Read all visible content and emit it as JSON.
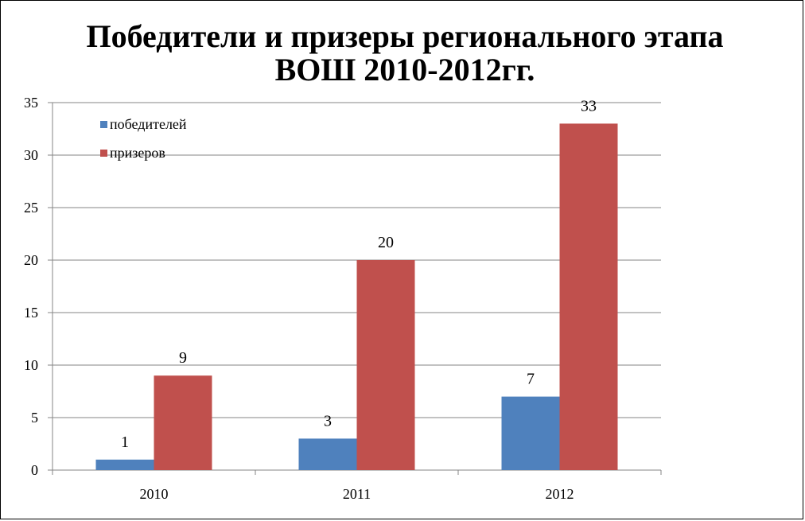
{
  "chart_data": {
    "type": "bar",
    "title_lines": [
      "Победители и призеры регионального этапа",
      "ВОШ 2010-2012гг."
    ],
    "categories": [
      "2010",
      "2011",
      "2012"
    ],
    "series": [
      {
        "name": "победителей",
        "values": [
          1,
          3,
          7
        ],
        "color": "#4F81BD"
      },
      {
        "name": "призеров",
        "values": [
          9,
          20,
          33
        ],
        "color": "#C0504D"
      }
    ],
    "y_ticks": [
      "0",
      "5",
      "10",
      "15",
      "20",
      "25",
      "30",
      "35"
    ],
    "ylim": [
      0,
      35
    ],
    "grid": true,
    "legend_position": "top-left",
    "data_labels": true
  }
}
